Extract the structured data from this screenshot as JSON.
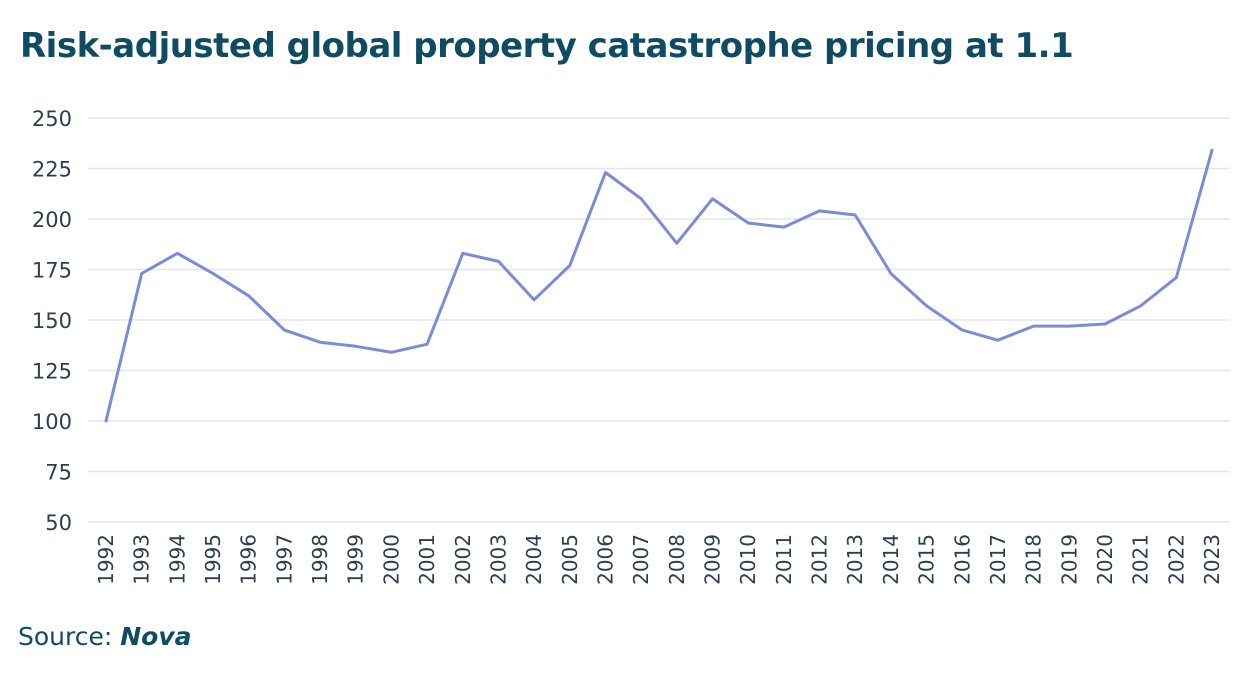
{
  "chart_data": {
    "type": "line",
    "title": "Risk-adjusted global property catastrophe pricing at 1.1",
    "xlabel": "",
    "ylabel": "",
    "ylim": [
      50,
      250
    ],
    "yticks": [
      50,
      75,
      100,
      125,
      150,
      175,
      200,
      225,
      250
    ],
    "grid": true,
    "legend": "none",
    "categories": [
      "1992",
      "1993",
      "1994",
      "1995",
      "1996",
      "1997",
      "1998",
      "1999",
      "2000",
      "2001",
      "2002",
      "2003",
      "2004",
      "2005",
      "2006",
      "2007",
      "2008",
      "2009",
      "2010",
      "2011",
      "2012",
      "2013",
      "2014",
      "2015",
      "2016",
      "2017",
      "2018",
      "2019",
      "2020",
      "2021",
      "2022",
      "2023"
    ],
    "series": [
      {
        "name": "",
        "color": "#7b8cd6",
        "values": [
          100,
          173,
          183,
          173,
          162,
          145,
          139,
          137,
          134,
          138,
          183,
          179,
          160,
          177,
          223,
          210,
          188,
          210,
          198,
          196,
          204,
          202,
          173,
          157,
          145,
          140,
          147,
          147,
          148,
          157,
          171,
          234
        ]
      }
    ]
  },
  "source": {
    "prefix": "Source: ",
    "name": "Nova"
  },
  "colors": {
    "title": "#0f4b63",
    "axis_text": "#2c3e50",
    "gridline": "#e4e6ea",
    "line": "#7b8cd6"
  }
}
